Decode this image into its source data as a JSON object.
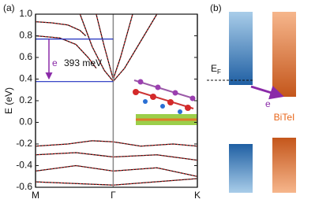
{
  "chart_data": {
    "type": "band",
    "panel_label": "(a)",
    "y_label": "E (eV)",
    "xlim": [
      0,
      2
    ],
    "ylim": [
      -0.6,
      1.0
    ],
    "xticks": [
      {
        "value": 0,
        "label": "M"
      },
      {
        "value": 0.96,
        "label": "Γ"
      },
      {
        "value": 2,
        "label": "K"
      }
    ],
    "yticks": [
      {
        "value": -0.6,
        "label": "-0.6"
      },
      {
        "value": -0.4,
        "label": "-0.4"
      },
      {
        "value": -0.2,
        "label": "-0.2"
      },
      {
        "value": 0,
        "label": "0.0"
      },
      {
        "value": 0.2,
        "label": "0.2"
      },
      {
        "value": 0.4,
        "label": "0.4"
      },
      {
        "value": 0.6,
        "label": "0.6"
      },
      {
        "value": 0.8,
        "label": "0.8"
      },
      {
        "value": 1.0,
        "label": "1.0"
      }
    ],
    "reference_lines": [
      {
        "value": 0.77,
        "color": "#1f2fbf"
      },
      {
        "value": 0.377,
        "color": "#1f2fbf"
      }
    ],
    "annotations": [
      {
        "text": "e",
        "color": "#8a2aa8"
      },
      {
        "text": "393 meV",
        "color": "#111"
      }
    ],
    "series": [
      {
        "color": "#111",
        "x": [
          0.55,
          0.7,
          0.85,
          0.96,
          1.1,
          1.3,
          1.5
        ],
        "values": [
          1.0,
          0.7,
          0.48,
          0.38,
          0.5,
          0.75,
          1.0
        ]
      },
      {
        "color": "#111",
        "x": [
          0.75,
          0.85,
          0.96,
          1.05,
          1.2
        ],
        "values": [
          1.0,
          0.7,
          0.4,
          0.6,
          1.0
        ]
      },
      {
        "color": "#111",
        "x": [
          0,
          0.2,
          0.4,
          0.55,
          0.62
        ],
        "values": [
          0.93,
          0.92,
          0.9,
          0.85,
          0.8
        ]
      },
      {
        "color": "#111",
        "x": [
          0,
          0.3,
          0.5,
          0.65,
          0.75
        ],
        "values": [
          0.8,
          0.78,
          0.72,
          0.6,
          0.5
        ]
      },
      {
        "color": "#111",
        "x": [
          0,
          0.4,
          0.7,
          0.96,
          1.3,
          1.7,
          2
        ],
        "values": [
          -0.22,
          -0.2,
          -0.17,
          -0.18,
          -0.22,
          -0.2,
          -0.22
        ]
      },
      {
        "color": "#111",
        "x": [
          0,
          0.5,
          0.96,
          1.5,
          2
        ],
        "values": [
          -0.3,
          -0.28,
          -0.32,
          -0.3,
          -0.35
        ]
      },
      {
        "color": "#111",
        "x": [
          0,
          0.5,
          0.96,
          1.5,
          2
        ],
        "values": [
          -0.45,
          -0.4,
          -0.45,
          -0.42,
          -0.5
        ]
      },
      {
        "color": "#111",
        "x": [
          0,
          0.96,
          2
        ],
        "values": [
          -0.55,
          -0.58,
          -0.52
        ]
      }
    ]
  },
  "panel_b": {
    "panel_label": "(b)",
    "fermi_label": {
      "main": "E",
      "sub": "F"
    },
    "electron": "e",
    "material": "BiTeI"
  }
}
